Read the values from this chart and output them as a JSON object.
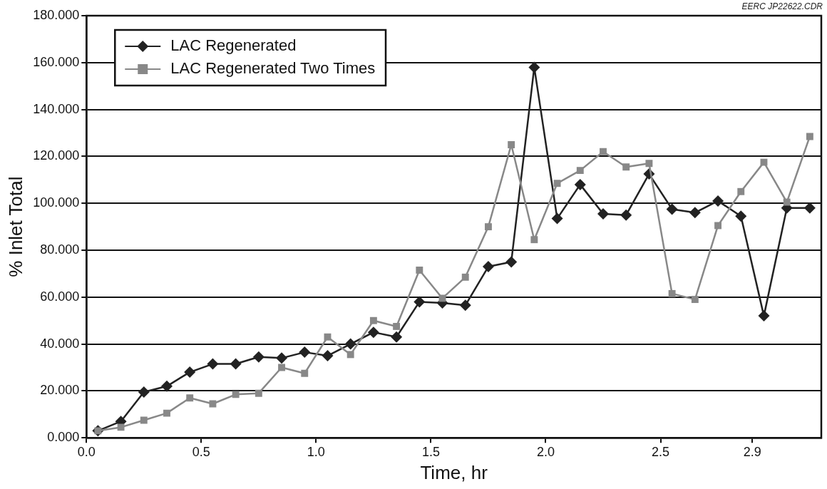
{
  "chart_data": {
    "type": "line",
    "xlabel": "Time, hr",
    "ylabel": "% Inlet Total",
    "annotations": [
      "EERC JP22622.CDR"
    ],
    "x": [
      0.05,
      0.15,
      0.25,
      0.35,
      0.45,
      0.55,
      0.65,
      0.75,
      0.85,
      0.95,
      1.05,
      1.15,
      1.25,
      1.35,
      1.45,
      1.55,
      1.65,
      1.75,
      1.85,
      1.95,
      2.05,
      2.15,
      2.25,
      2.35,
      2.45,
      2.55,
      2.65,
      2.75,
      2.85,
      2.95,
      3.05,
      3.15
    ],
    "series": [
      {
        "name": "LAC Regenerated",
        "color": "#222222",
        "marker": "diamond",
        "values": [
          3,
          7,
          19.5,
          22,
          28,
          31.5,
          31.5,
          34.5,
          34,
          36.5,
          35,
          40,
          45,
          43,
          58,
          57.5,
          56.5,
          73,
          75,
          158,
          93.5,
          108,
          95.5,
          95,
          112.5,
          97.5,
          96,
          101,
          94.5,
          52,
          98,
          98
        ]
      },
      {
        "name": "LAC Regenerated Two Times",
        "color": "#888888",
        "marker": "square",
        "values": [
          3,
          4.5,
          7.5,
          10.5,
          17,
          14.5,
          18.5,
          19,
          30,
          27.5,
          43,
          35.5,
          50,
          47.5,
          71.5,
          59.5,
          68.5,
          90,
          125,
          84.5,
          108.5,
          114,
          122,
          115.5,
          117,
          61.5,
          59,
          90.5,
          105,
          117.5,
          100.5,
          128.5
        ]
      }
    ],
    "xlim": [
      0,
      3.2
    ],
    "xticks": [
      {
        "value": 0,
        "label": "0.0"
      },
      {
        "value": 0.5,
        "label": "0.5"
      },
      {
        "value": 1,
        "label": "1.0"
      },
      {
        "value": 1.5,
        "label": "1.5"
      },
      {
        "value": 2,
        "label": "2.0"
      },
      {
        "value": 2.5,
        "label": "2.5"
      },
      {
        "value": 2.9,
        "label": "2.9"
      }
    ],
    "ylim": [
      0,
      180
    ],
    "yticks": [
      {
        "value": 0,
        "label": "0.000"
      },
      {
        "value": 20,
        "label": "20.000"
      },
      {
        "value": 40,
        "label": "40.000"
      },
      {
        "value": 60,
        "label": "60.000"
      },
      {
        "value": 80,
        "label": "80.000"
      },
      {
        "value": 100,
        "label": "100.000"
      },
      {
        "value": 120,
        "label": "120.000"
      },
      {
        "value": 140,
        "label": "140.000"
      },
      {
        "value": 160,
        "label": "160.000"
      },
      {
        "value": 180,
        "label": "180.000"
      }
    ],
    "grid": "y",
    "legend": "top left",
    "line_style": "solid"
  }
}
